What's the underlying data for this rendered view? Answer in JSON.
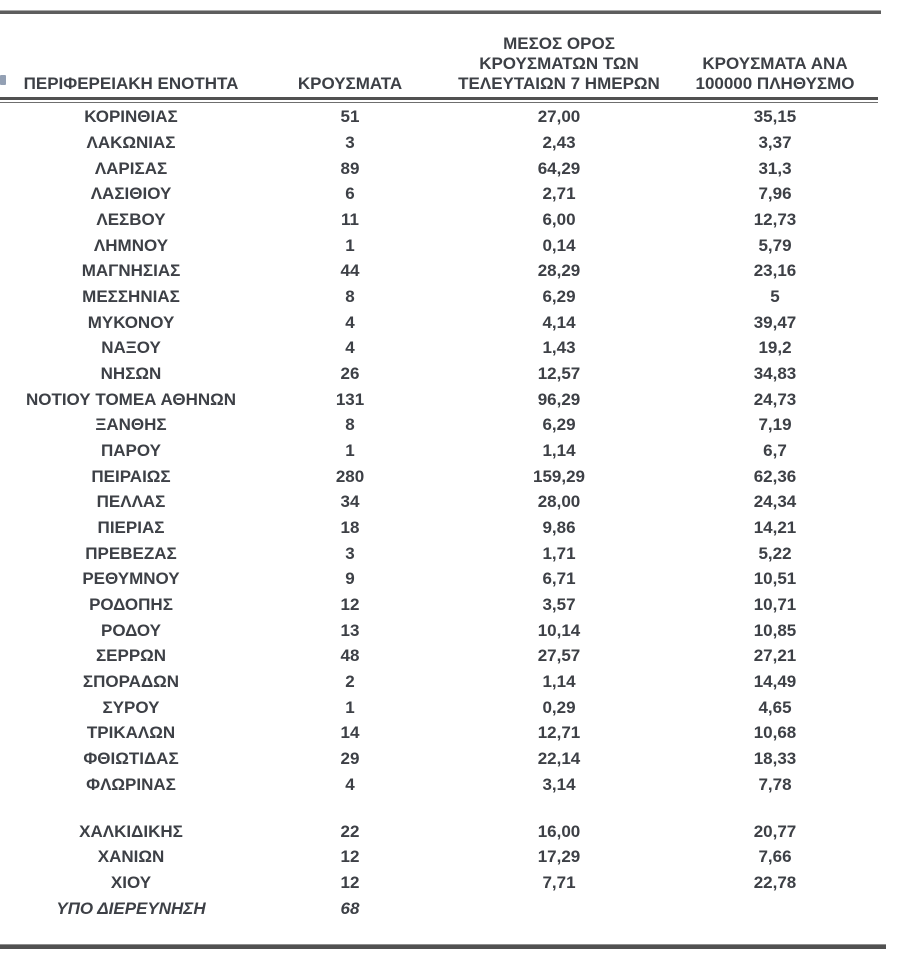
{
  "table": {
    "headers": {
      "col1": "ΠΕΡΙΦΕΡΕΙΑΚΗ ΕΝΟΤΗΤΑ",
      "col2": "ΚΡΟΥΣΜΑΤΑ",
      "col3_lines": [
        "ΜΕΣΟΣ ΟΡΟΣ",
        "ΚΡΟΥΣΜΑΤΩΝ ΤΩΝ",
        "ΤΕΛΕΥΤΑΙΩΝ 7 ΗΜΕΡΩΝ"
      ],
      "col4_lines": [
        "ΚΡΟΥΣΜΑΤΑ ΑΝΑ",
        "100000 ΠΛΗΘΥΣΜΟ"
      ]
    },
    "rows": [
      {
        "name": "ΚΟΡΙΝΘΙΑΣ",
        "cases": "51",
        "avg7": "27,00",
        "per100k": "35,15"
      },
      {
        "name": "ΛΑΚΩΝΙΑΣ",
        "cases": "3",
        "avg7": "2,43",
        "per100k": "3,37"
      },
      {
        "name": "ΛΑΡΙΣΑΣ",
        "cases": "89",
        "avg7": "64,29",
        "per100k": "31,3"
      },
      {
        "name": "ΛΑΣΙΘΙΟΥ",
        "cases": "6",
        "avg7": "2,71",
        "per100k": "7,96"
      },
      {
        "name": "ΛΕΣΒΟΥ",
        "cases": "11",
        "avg7": "6,00",
        "per100k": "12,73"
      },
      {
        "name": "ΛΗΜΝΟΥ",
        "cases": "1",
        "avg7": "0,14",
        "per100k": "5,79"
      },
      {
        "name": "ΜΑΓΝΗΣΙΑΣ",
        "cases": "44",
        "avg7": "28,29",
        "per100k": "23,16"
      },
      {
        "name": "ΜΕΣΣΗΝΙΑΣ",
        "cases": "8",
        "avg7": "6,29",
        "per100k": "5"
      },
      {
        "name": "ΜΥΚΟΝΟΥ",
        "cases": "4",
        "avg7": "4,14",
        "per100k": "39,47"
      },
      {
        "name": "ΝΑΞΟΥ",
        "cases": "4",
        "avg7": "1,43",
        "per100k": "19,2"
      },
      {
        "name": "ΝΗΣΩΝ",
        "cases": "26",
        "avg7": "12,57",
        "per100k": "34,83"
      },
      {
        "name": "ΝΟΤΙΟΥ ΤΟΜΕΑ ΑΘΗΝΩΝ",
        "cases": "131",
        "avg7": "96,29",
        "per100k": "24,73"
      },
      {
        "name": "ΞΑΝΘΗΣ",
        "cases": "8",
        "avg7": "6,29",
        "per100k": "7,19"
      },
      {
        "name": "ΠΑΡΟΥ",
        "cases": "1",
        "avg7": "1,14",
        "per100k": "6,7"
      },
      {
        "name": "ΠΕΙΡΑΙΩΣ",
        "cases": "280",
        "avg7": "159,29",
        "per100k": "62,36"
      },
      {
        "name": "ΠΕΛΛΑΣ",
        "cases": "34",
        "avg7": "28,00",
        "per100k": "24,34"
      },
      {
        "name": "ΠΙΕΡΙΑΣ",
        "cases": "18",
        "avg7": "9,86",
        "per100k": "14,21"
      },
      {
        "name": "ΠΡΕΒΕΖΑΣ",
        "cases": "3",
        "avg7": "1,71",
        "per100k": "5,22"
      },
      {
        "name": "ΡΕΘΥΜΝΟΥ",
        "cases": "9",
        "avg7": "6,71",
        "per100k": "10,51"
      },
      {
        "name": "ΡΟΔΟΠΗΣ",
        "cases": "12",
        "avg7": "3,57",
        "per100k": "10,71"
      },
      {
        "name": "ΡΟΔΟΥ",
        "cases": "13",
        "avg7": "10,14",
        "per100k": "10,85"
      },
      {
        "name": "ΣΕΡΡΩΝ",
        "cases": "48",
        "avg7": "27,57",
        "per100k": "27,21"
      },
      {
        "name": "ΣΠΟΡΑΔΩΝ",
        "cases": "2",
        "avg7": "1,14",
        "per100k": "14,49"
      },
      {
        "name": "ΣΥΡΟΥ",
        "cases": "1",
        "avg7": "0,29",
        "per100k": "4,65"
      },
      {
        "name": "ΤΡΙΚΑΛΩΝ",
        "cases": "14",
        "avg7": "12,71",
        "per100k": "10,68"
      },
      {
        "name": "ΦΘΙΩΤΙΔΑΣ",
        "cases": "29",
        "avg7": "22,14",
        "per100k": "18,33"
      },
      {
        "name": "ΦΛΩΡΙΝΑΣ",
        "cases": "4",
        "avg7": "3,14",
        "per100k": "7,78"
      },
      {
        "spacer": true
      },
      {
        "name": "ΧΑΛΚΙΔΙΚΗΣ",
        "cases": "22",
        "avg7": "16,00",
        "per100k": "20,77"
      },
      {
        "name": "ΧΑΝΙΩΝ",
        "cases": "12",
        "avg7": "17,29",
        "per100k": "7,66"
      },
      {
        "name": "ΧΙΟΥ",
        "cases": "12",
        "avg7": "7,71",
        "per100k": "22,78"
      },
      {
        "name": "ΥΠΟ ΔΙΕΡΕΥΝΗΣΗ",
        "cases": "68",
        "avg7": "",
        "per100k": "",
        "italic": true
      }
    ]
  },
  "colors": {
    "text": "#3d4046",
    "rule_dark": "#515151",
    "rule_light": "#6f6f6f"
  }
}
